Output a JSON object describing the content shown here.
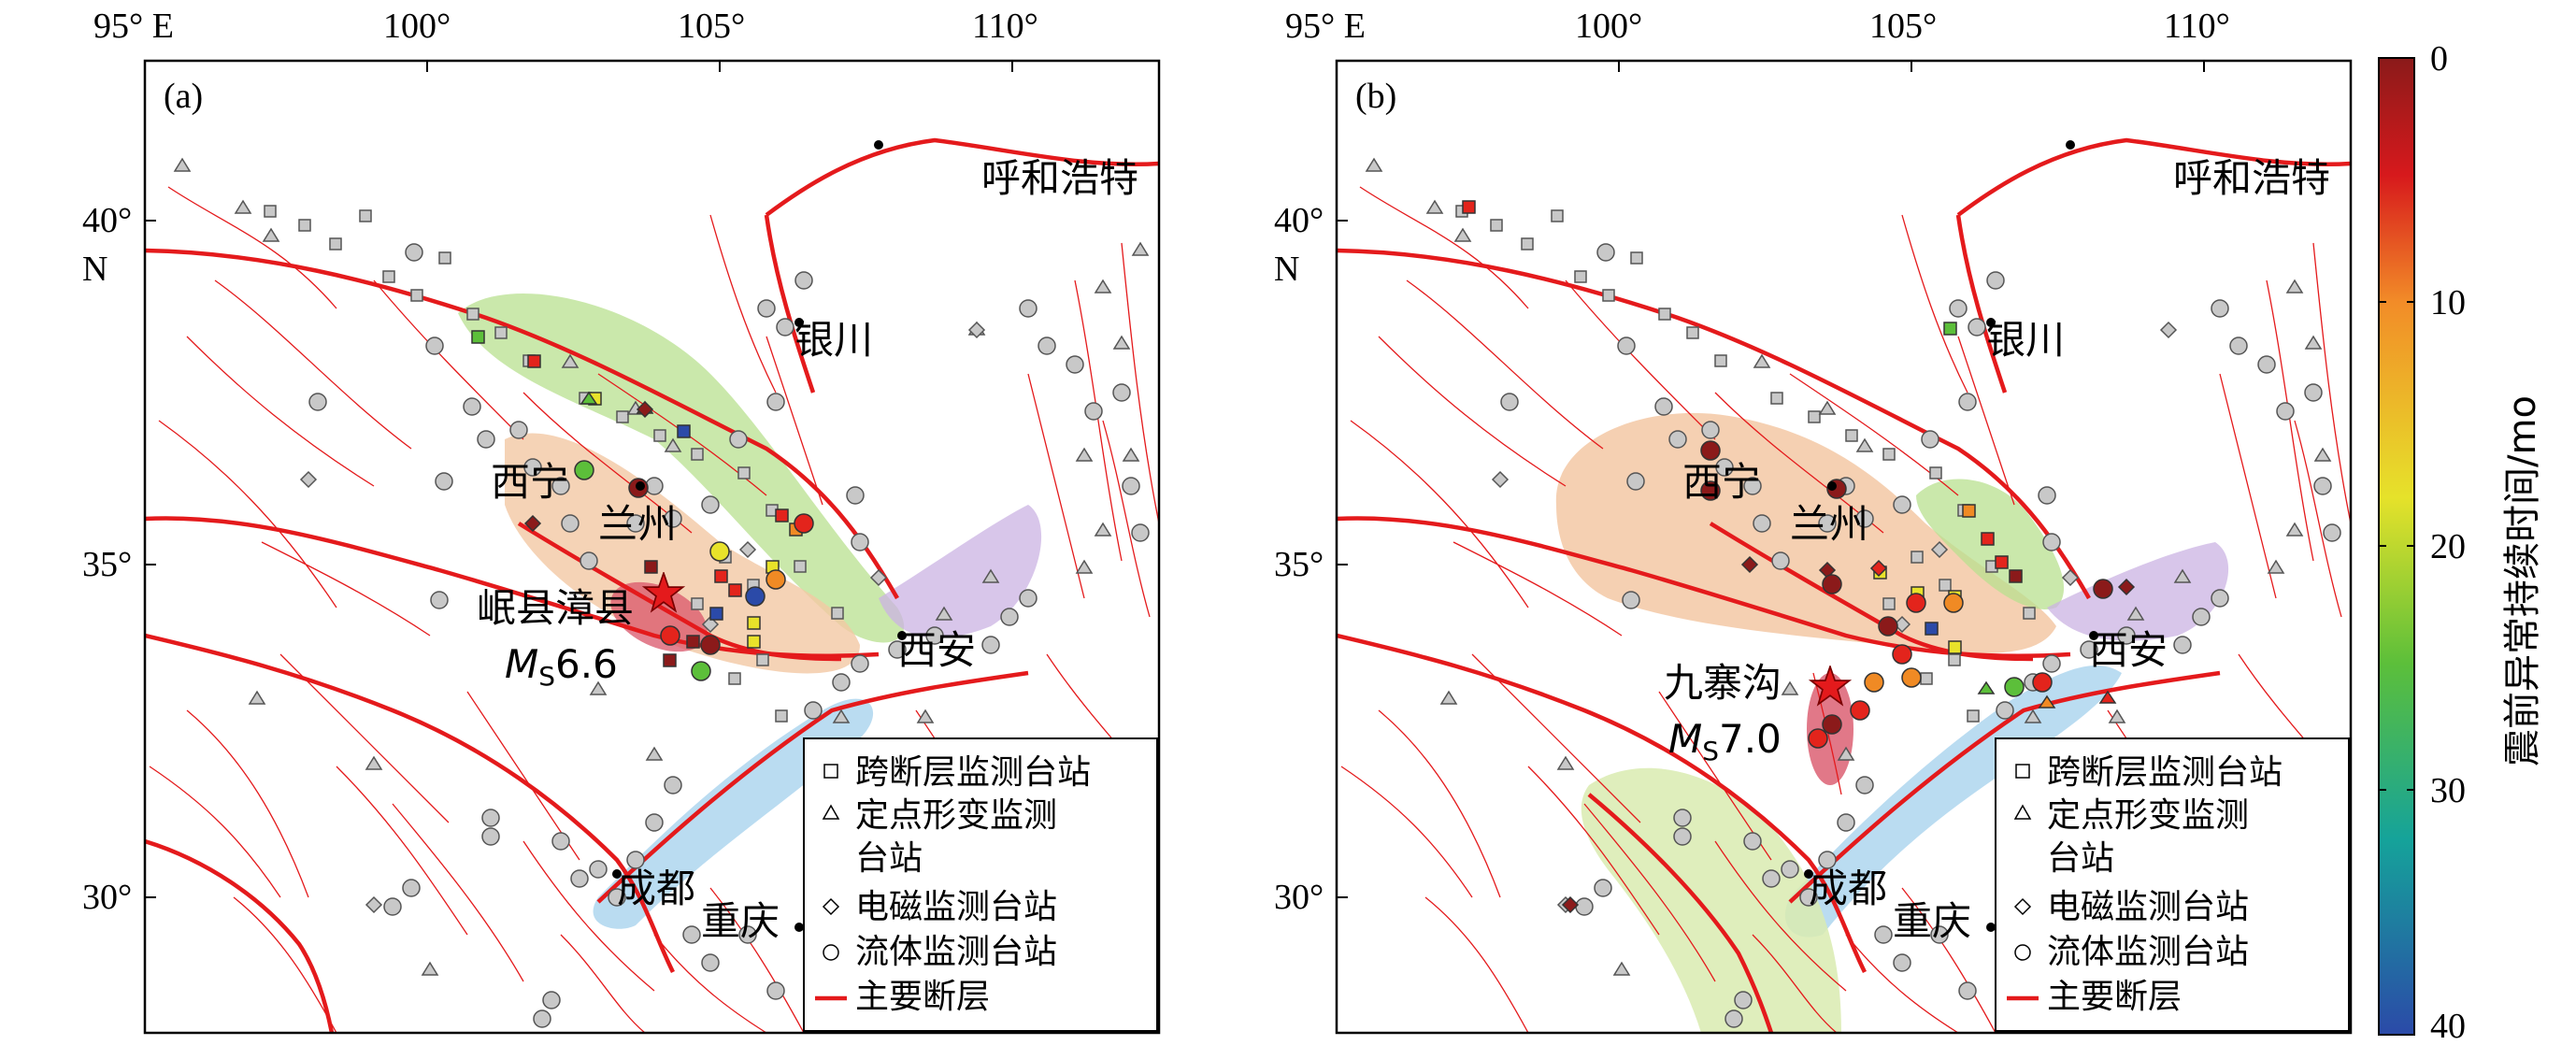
{
  "axes": {
    "lon_ticks": [
      "95° E",
      "100°",
      "105°",
      "110°"
    ],
    "lat_ticks": [
      "40°",
      "35°",
      "30°"
    ],
    "lat_unit": "N"
  },
  "panels": [
    {
      "label": "(a)",
      "epicenter": {
        "name": "岷县漳县",
        "magnitude_prefix": "M",
        "magnitude_sub": "S",
        "magnitude_value": "6.6"
      }
    },
    {
      "label": "(b)",
      "epicenter": {
        "name": "九寨沟",
        "magnitude_prefix": "M",
        "magnitude_sub": "S",
        "magnitude_value": "7.0"
      }
    }
  ],
  "cities": [
    "呼和浩特",
    "银川",
    "西宁",
    "兰州",
    "西安",
    "成都",
    "重庆"
  ],
  "legend": {
    "items": [
      "跨断层监测台站",
      "定点形变监测",
      "台站",
      "电磁监测台站",
      "流体监测台站",
      "主要断层"
    ]
  },
  "colorbar": {
    "title": "震前异常持续时间/mo",
    "ticks": [
      "0",
      "10",
      "20",
      "30",
      "40"
    ],
    "range": [
      0,
      40
    ],
    "colors": [
      "#8b1a1a",
      "#e3241c",
      "#f08a24",
      "#e8e22a",
      "#64c23a",
      "#1aa39a",
      "#2b4aa8"
    ]
  },
  "style": {
    "fault_color": "#e41a1c",
    "station_gray": "#c8c8c8",
    "zone_green": "#b8e08f",
    "zone_orange": "#f3c8a4",
    "zone_purple": "#cbb3e3",
    "zone_blue": "#a9d3ee",
    "zone_yellowgreen": "#d9ebb0",
    "zone_red": "#d9566a"
  }
}
